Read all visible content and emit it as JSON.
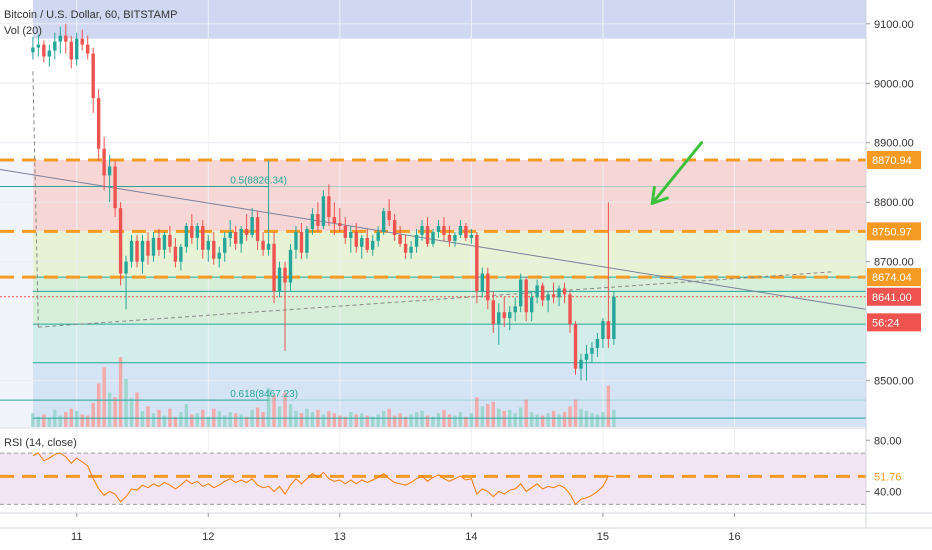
{
  "header": {
    "title": "Bitcoin / U.S. Dollar, 60, BITSTAMP",
    "volume_label": "Vol (20)",
    "rsi_label": "RSI (14, close)"
  },
  "price_axis": {
    "ticks": [
      "9100.00",
      "9000.00",
      "8900.00",
      "8800.00",
      "8700.00",
      "8500.00"
    ],
    "tick_values": [
      9100,
      9000,
      8900,
      8800,
      8700,
      8500
    ],
    "range": [
      8422,
      9140
    ],
    "partial_tick": "8"
  },
  "rsi_axis": {
    "ticks": [
      "80.00",
      "40.00"
    ],
    "tick_values": [
      80,
      40
    ],
    "range": [
      24,
      88
    ]
  },
  "time_axis": {
    "labels": [
      "11",
      "12",
      "13",
      "14",
      "15",
      "16"
    ],
    "label_index": [
      8,
      32,
      56,
      80,
      104,
      128
    ],
    "range_index": [
      -6,
      152
    ]
  },
  "price_labels": [
    {
      "text": "8870.94",
      "value": 8870.94,
      "bg": "#f59a23",
      "fg": "#ffffff"
    },
    {
      "text": "8750.97",
      "value": 8750.97,
      "bg": "#f59a23",
      "fg": "#ffffff"
    },
    {
      "text": "8674.04",
      "value": 8674.04,
      "bg": "#f59a23",
      "fg": "#ffffff"
    },
    {
      "text": "8641.00",
      "value": 8641.0,
      "bg": "#ef5350",
      "fg": "#ffffff"
    },
    {
      "text": "56:24",
      "value": 8598,
      "bg": "#ef5350",
      "fg": "#ffffff"
    }
  ],
  "rsi_value_label": {
    "text": "51.76",
    "value": 51.76,
    "bg": "#ffffff",
    "fg": "#f59a23"
  },
  "fib_labels": [
    {
      "text": "0.5(8826.34)",
      "value": 8826.34
    },
    {
      "text": "0.618(8467.23)",
      "value": 8467.23
    }
  ],
  "colors": {
    "up": "#26a69a",
    "down": "#ef5350",
    "orange": "#f59a23",
    "arrow": "#3cc13c",
    "rsi_line": "#f57c00",
    "rsi_band": "#f3e5f5",
    "fib_line": "#26a69a"
  },
  "fib_bands": [
    {
      "from": 9140,
      "to": 9075,
      "color": "#cfd8f0"
    },
    {
      "from": 8870.94,
      "to": 8750.97,
      "color": "#f7d7d5"
    },
    {
      "from": 8750.97,
      "to": 8674,
      "color": "#e8f3d6"
    },
    {
      "from": 8674,
      "to": 8595,
      "color": "#d7efd9"
    },
    {
      "from": 8595,
      "to": 8530,
      "color": "#d3eeea"
    },
    {
      "from": 8530,
      "to": 8422,
      "color": "#d4e4f4"
    }
  ],
  "fib_lines": [
    8826.34,
    8674,
    8650,
    8595,
    8530,
    8467.23,
    8437
  ],
  "horizontal_levels": [
    8870.94,
    8750.97,
    8674.04
  ],
  "rsi_levels": [
    70,
    30
  ],
  "rsi_level_dashed": 51.76,
  "trendlines": [
    {
      "from": {
        "i": -6,
        "v": 8855
      },
      "to": {
        "i": 152,
        "v": 8620
      },
      "style": "solid"
    },
    {
      "from": {
        "i": 0,
        "v": 9020
      },
      "to": {
        "i": 1,
        "v": 8590
      },
      "style": "dashed"
    },
    {
      "from": {
        "i": 1,
        "v": 8590
      },
      "to": {
        "i": 146,
        "v": 8683
      },
      "style": "dashed"
    }
  ],
  "arrow": {
    "from": {
      "i": 122,
      "v": 8900
    },
    "to": {
      "i": 113,
      "v": 8798
    }
  },
  "chart_data": {
    "type": "candlestick",
    "title": "Bitcoin / U.S. Dollar, 60, BITSTAMP",
    "xlabel": "",
    "ylabel": "",
    "x_axis_labels": [
      "11",
      "12",
      "13",
      "14",
      "15",
      "16"
    ],
    "ylim": [
      8422,
      9140
    ],
    "grid": true,
    "candles": [
      [
        9052,
        9078,
        9040,
        9060
      ],
      [
        9060,
        9082,
        9045,
        9065
      ],
      [
        9065,
        9072,
        9035,
        9045
      ],
      [
        9045,
        9065,
        9028,
        9055
      ],
      [
        9055,
        9085,
        9040,
        9070
      ],
      [
        9070,
        9095,
        9050,
        9080
      ],
      [
        9080,
        9100,
        9050,
        9070
      ],
      [
        9070,
        9080,
        9025,
        9040
      ],
      [
        9040,
        9085,
        9030,
        9075
      ],
      [
        9075,
        9090,
        9055,
        9065
      ],
      [
        9065,
        9080,
        9040,
        9050
      ],
      [
        9050,
        9060,
        8950,
        8975
      ],
      [
        8975,
        8990,
        8870,
        8890
      ],
      [
        8890,
        8910,
        8820,
        8845
      ],
      [
        8845,
        8880,
        8800,
        8860
      ],
      [
        8860,
        8870,
        8775,
        8790
      ],
      [
        8790,
        8800,
        8660,
        8680
      ],
      [
        8680,
        8710,
        8620,
        8700
      ],
      [
        8700,
        8745,
        8690,
        8735
      ],
      [
        8735,
        8745,
        8690,
        8700
      ],
      [
        8700,
        8745,
        8680,
        8735
      ],
      [
        8735,
        8750,
        8695,
        8710
      ],
      [
        8710,
        8750,
        8700,
        8740
      ],
      [
        8740,
        8755,
        8710,
        8720
      ],
      [
        8720,
        8750,
        8705,
        8745
      ],
      [
        8745,
        8760,
        8715,
        8725
      ],
      [
        8725,
        8740,
        8690,
        8700
      ],
      [
        8700,
        8730,
        8685,
        8725
      ],
      [
        8725,
        8765,
        8715,
        8760
      ],
      [
        8760,
        8780,
        8730,
        8740
      ],
      [
        8740,
        8765,
        8720,
        8760
      ],
      [
        8760,
        8770,
        8705,
        8720
      ],
      [
        8720,
        8745,
        8700,
        8735
      ],
      [
        8735,
        8750,
        8695,
        8705
      ],
      [
        8705,
        8725,
        8690,
        8715
      ],
      [
        8715,
        8750,
        8700,
        8740
      ],
      [
        8740,
        8770,
        8725,
        8750
      ],
      [
        8750,
        8760,
        8720,
        8730
      ],
      [
        8730,
        8760,
        8715,
        8755
      ],
      [
        8755,
        8780,
        8735,
        8745
      ],
      [
        8745,
        8790,
        8740,
        8775
      ],
      [
        8775,
        8785,
        8720,
        8735
      ],
      [
        8735,
        8750,
        8710,
        8720
      ],
      [
        8720,
        8870,
        8710,
        8730
      ],
      [
        8730,
        8750,
        8630,
        8650
      ],
      [
        8650,
        8700,
        8640,
        8690
      ],
      [
        8690,
        8700,
        8550,
        8665
      ],
      [
        8665,
        8730,
        8650,
        8720
      ],
      [
        8720,
        8760,
        8705,
        8750
      ],
      [
        8750,
        8765,
        8705,
        8715
      ],
      [
        8715,
        8760,
        8705,
        8755
      ],
      [
        8755,
        8790,
        8745,
        8780
      ],
      [
        8780,
        8800,
        8750,
        8760
      ],
      [
        8760,
        8820,
        8755,
        8810
      ],
      [
        8810,
        8830,
        8760,
        8775
      ],
      [
        8775,
        8800,
        8745,
        8765
      ],
      [
        8765,
        8790,
        8750,
        8760
      ],
      [
        8760,
        8775,
        8730,
        8740
      ],
      [
        8740,
        8760,
        8715,
        8750
      ],
      [
        8750,
        8765,
        8715,
        8725
      ],
      [
        8725,
        8745,
        8705,
        8740
      ],
      [
        8740,
        8755,
        8715,
        8720
      ],
      [
        8720,
        8745,
        8710,
        8735
      ],
      [
        8735,
        8760,
        8725,
        8750
      ],
      [
        8750,
        8790,
        8745,
        8785
      ],
      [
        8785,
        8805,
        8760,
        8770
      ],
      [
        8770,
        8780,
        8735,
        8745
      ],
      [
        8745,
        8760,
        8725,
        8730
      ],
      [
        8730,
        8745,
        8705,
        8715
      ],
      [
        8715,
        8735,
        8705,
        8725
      ],
      [
        8725,
        8755,
        8715,
        8745
      ],
      [
        8745,
        8770,
        8735,
        8760
      ],
      [
        8760,
        8775,
        8725,
        8730
      ],
      [
        8730,
        8755,
        8725,
        8750
      ],
      [
        8750,
        8770,
        8740,
        8760
      ],
      [
        8760,
        8775,
        8735,
        8745
      ],
      [
        8745,
        8760,
        8725,
        8735
      ],
      [
        8735,
        8750,
        8725,
        8745
      ],
      [
        8745,
        8770,
        8740,
        8760
      ],
      [
        8760,
        8765,
        8735,
        8740
      ],
      [
        8740,
        8755,
        8730,
        8745
      ],
      [
        8745,
        8750,
        8630,
        8650
      ],
      [
        8650,
        8690,
        8640,
        8680
      ],
      [
        8680,
        8690,
        8620,
        8635
      ],
      [
        8635,
        8650,
        8580,
        8595
      ],
      [
        8595,
        8630,
        8560,
        8615
      ],
      [
        8615,
        8640,
        8590,
        8605
      ],
      [
        8605,
        8625,
        8585,
        8615
      ],
      [
        8615,
        8640,
        8600,
        8625
      ],
      [
        8625,
        8680,
        8615,
        8670
      ],
      [
        8670,
        8675,
        8600,
        8615
      ],
      [
        8615,
        8650,
        8600,
        8640
      ],
      [
        8640,
        8670,
        8630,
        8660
      ],
      [
        8660,
        8665,
        8625,
        8635
      ],
      [
        8635,
        8650,
        8615,
        8645
      ],
      [
        8645,
        8665,
        8630,
        8640
      ],
      [
        8640,
        8660,
        8625,
        8655
      ],
      [
        8655,
        8665,
        8630,
        8645
      ],
      [
        8645,
        8650,
        8580,
        8595
      ],
      [
        8595,
        8600,
        8510,
        8520
      ],
      [
        8520,
        8545,
        8500,
        8535
      ],
      [
        8535,
        8560,
        8500,
        8545
      ],
      [
        8545,
        8565,
        8530,
        8555
      ],
      [
        8555,
        8580,
        8540,
        8570
      ],
      [
        8570,
        8605,
        8555,
        8600
      ],
      [
        8600,
        8800,
        8555,
        8570
      ],
      [
        8570,
        8650,
        8560,
        8641
      ]
    ],
    "volumes": [
      120,
      90,
      110,
      80,
      150,
      100,
      130,
      160,
      140,
      110,
      100,
      210,
      380,
      520,
      300,
      260,
      610,
      420,
      250,
      300,
      140,
      180,
      120,
      150,
      100,
      160,
      90,
      130,
      200,
      110,
      120,
      150,
      90,
      160,
      140,
      100,
      130,
      120,
      110,
      90,
      150,
      170,
      130,
      340,
      280,
      180,
      300,
      200,
      140,
      120,
      160,
      130,
      150,
      110,
      140,
      120,
      100,
      90,
      130,
      110,
      120,
      100,
      90,
      110,
      140,
      160,
      100,
      120,
      90,
      110,
      130,
      140,
      100,
      90,
      120,
      150,
      110,
      100,
      130,
      90,
      120,
      260,
      180,
      200,
      220,
      160,
      140,
      150,
      120,
      170,
      240,
      130,
      110,
      100,
      120,
      140,
      110,
      130,
      180,
      240,
      160,
      140,
      120,
      110,
      130,
      360,
      150
    ],
    "rsi": [
      68,
      70,
      64,
      66,
      69,
      70,
      67,
      62,
      66,
      63,
      60,
      50,
      42,
      37,
      40,
      38,
      32,
      36,
      42,
      41,
      45,
      43,
      46,
      44,
      47,
      45,
      42,
      45,
      49,
      46,
      48,
      44,
      46,
      43,
      45,
      48,
      50,
      47,
      49,
      47,
      50,
      45,
      43,
      44,
      40,
      44,
      38,
      45,
      50,
      46,
      50,
      54,
      51,
      55,
      50,
      48,
      49,
      46,
      49,
      46,
      49,
      47,
      49,
      51,
      54,
      50,
      47,
      46,
      45,
      47,
      50,
      52,
      48,
      51,
      53,
      50,
      48,
      50,
      52,
      49,
      50,
      38,
      42,
      40,
      36,
      40,
      38,
      41,
      42,
      46,
      40,
      43,
      46,
      42,
      44,
      43,
      45,
      43,
      38,
      30,
      34,
      35,
      37,
      40,
      44,
      52,
      51.76
    ]
  }
}
